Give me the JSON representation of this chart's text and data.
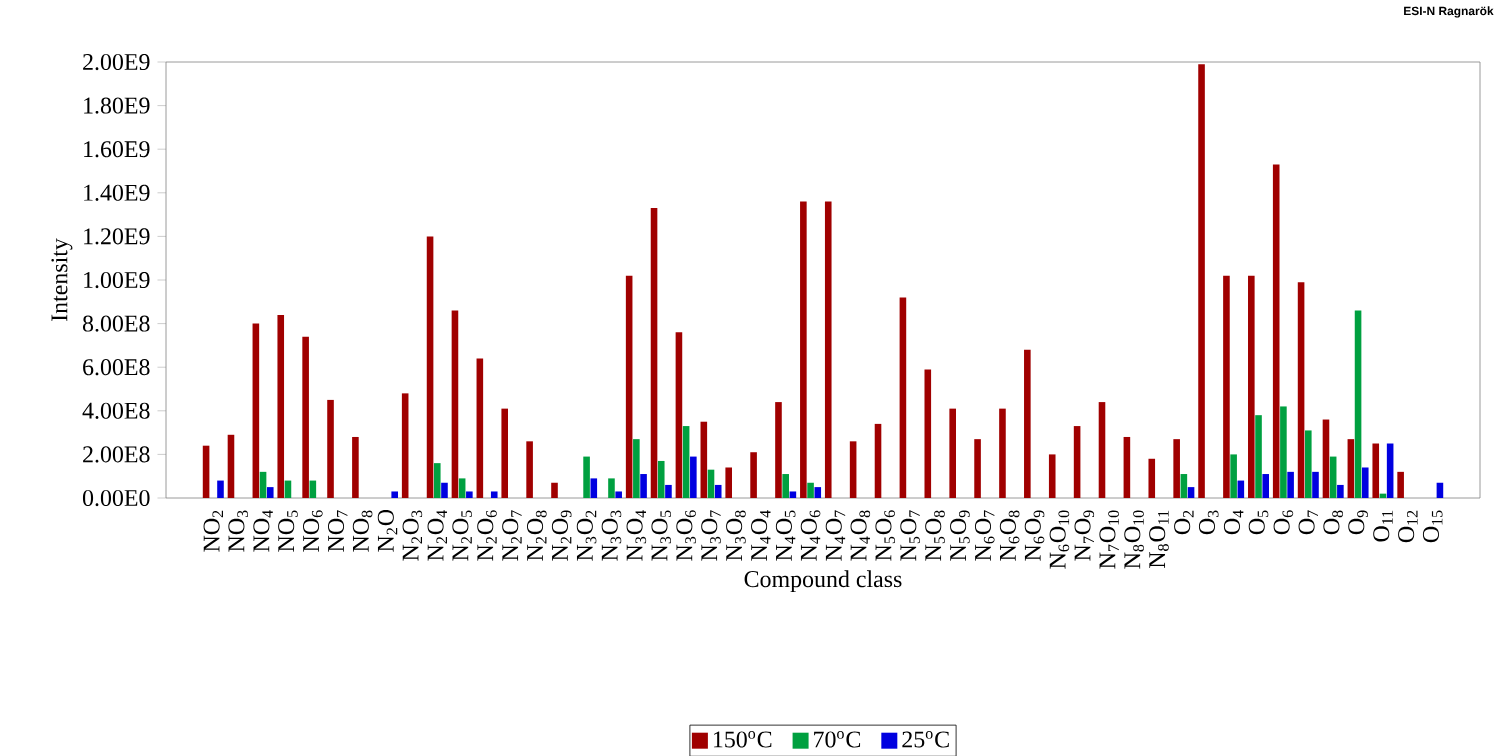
{
  "chart_data": {
    "type": "bar",
    "xlabel": "Compound class",
    "ylabel": "Intensity",
    "annotations": [
      "ESI-N Ragnarök"
    ],
    "categories": [
      "NO$_{2}$",
      "NO$_{3}$",
      "NO$_{4}$",
      "NO$_{5}$",
      "NO$_{6}$",
      "NO$_{7}$",
      "NO$_{8}$",
      "N$_{2}$O",
      "N$_{2}$O$_{3}$",
      "N$_{2}$O$_{4}$",
      "N$_{2}$O$_{5}$",
      "N$_{2}$O$_{6}$",
      "N$_{2}$O$_{7}$",
      "N$_{2}$O$_{8}$",
      "N$_{2}$O$_{9}$",
      "N$_{3}$O$_{2}$",
      "N$_{3}$O$_{3}$",
      "N$_{3}$O$_{4}$",
      "N$_{3}$O$_{5}$",
      "N$_{3}$O$_{6}$",
      "N$_{3}$O$_{7}$",
      "N$_{3}$O$_{8}$",
      "N$_{4}$O$_{4}$",
      "N$_{4}$O$_{5}$",
      "N$_{4}$O$_{6}$",
      "N$_{4}$O$_{7}$",
      "N$_{4}$O$_{8}$",
      "N$_{5}$O$_{6}$",
      "N$_{5}$O$_{7}$",
      "N$_{5}$O$_{8}$",
      "N$_{5}$O$_{9}$",
      "N$_{6}$O$_{7}$",
      "N$_{6}$O$_{8}$",
      "N$_{6}$O$_{9}$",
      "N$_{6}$O$_{10}$",
      "N$_{7}$O$_{9}$",
      "N$_{7}$O$_{10}$",
      "N$_{8}$O$_{10}$",
      "N$_{8}$O$_{11}$",
      "O$_{2}$",
      "O$_{3}$",
      "O$_{4}$",
      "O$_{5}$",
      "O$_{6}$",
      "O$_{7}$",
      "O$_{8}$",
      "O$_{9}$",
      "O$_{11}$",
      "O$_{12}$",
      "O$_{15}$"
    ],
    "series": [
      {
        "name": "150$^{o}$C",
        "color": "#a00000",
        "values": [
          240000000.0,
          290000000.0,
          800000000.0,
          840000000.0,
          740000000.0,
          450000000.0,
          280000000.0,
          null,
          480000000.0,
          1200000000.0,
          860000000.0,
          640000000.0,
          410000000.0,
          260000000.0,
          70000000.0,
          null,
          null,
          1020000000.0,
          1330000000.0,
          760000000.0,
          350000000.0,
          140000000.0,
          210000000.0,
          440000000.0,
          1360000000.0,
          1360000000.0,
          260000000.0,
          340000000.0,
          920000000.0,
          590000000.0,
          410000000.0,
          270000000.0,
          410000000.0,
          680000000.0,
          200000000.0,
          330000000.0,
          440000000.0,
          280000000.0,
          180000000.0,
          270000000.0,
          1990000000.0,
          1020000000.0,
          1020000000.0,
          1530000000.0,
          990000000.0,
          360000000.0,
          270000000.0,
          250000000.0,
          120000000.0,
          null
        ]
      },
      {
        "name": "70$^{o}$C",
        "color": "#00a040",
        "values": [
          null,
          null,
          120000000.0,
          80000000.0,
          80000000.0,
          null,
          null,
          null,
          null,
          160000000.0,
          90000000.0,
          null,
          null,
          null,
          null,
          190000000.0,
          90000000.0,
          270000000.0,
          170000000.0,
          330000000.0,
          130000000.0,
          null,
          null,
          110000000.0,
          70000000.0,
          null,
          null,
          null,
          null,
          null,
          null,
          null,
          null,
          null,
          null,
          null,
          null,
          null,
          null,
          110000000.0,
          null,
          200000000.0,
          380000000.0,
          420000000.0,
          310000000.0,
          190000000.0,
          860000000.0,
          20000000.0,
          null,
          null
        ]
      },
      {
        "name": "25$^{o}$C",
        "color": "#0000e0",
        "values": [
          80000000.0,
          null,
          50000000.0,
          null,
          null,
          null,
          null,
          30000000.0,
          null,
          70000000.0,
          30000000.0,
          30000000.0,
          null,
          null,
          null,
          90000000.0,
          30000000.0,
          110000000.0,
          60000000.0,
          190000000.0,
          60000000.0,
          null,
          null,
          30000000.0,
          50000000.0,
          null,
          null,
          null,
          null,
          null,
          null,
          null,
          null,
          null,
          null,
          null,
          null,
          null,
          null,
          50000000.0,
          null,
          80000000.0,
          110000000.0,
          120000000.0,
          120000000.0,
          60000000.0,
          140000000.0,
          250000000.0,
          null,
          70000000.0
        ]
      }
    ],
    "ylim": [
      0,
      2000000000
    ],
    "yticks": [
      {
        "value": 0,
        "label": "0.00E0"
      },
      {
        "value": 200000000,
        "label": "2.00E8"
      },
      {
        "value": 400000000,
        "label": "4.00E8"
      },
      {
        "value": 600000000,
        "label": "6.00E8"
      },
      {
        "value": 800000000,
        "label": "8.00E8"
      },
      {
        "value": 1000000000,
        "label": "1.00E9"
      },
      {
        "value": 1200000000,
        "label": "1.20E9"
      },
      {
        "value": 1400000000,
        "label": "1.40E9"
      },
      {
        "value": 1600000000,
        "label": "1.60E9"
      },
      {
        "value": 1800000000,
        "label": "1.80E9"
      },
      {
        "value": 2000000000,
        "label": "2.00E9"
      }
    ],
    "legend": "bottom",
    "grid": false
  }
}
